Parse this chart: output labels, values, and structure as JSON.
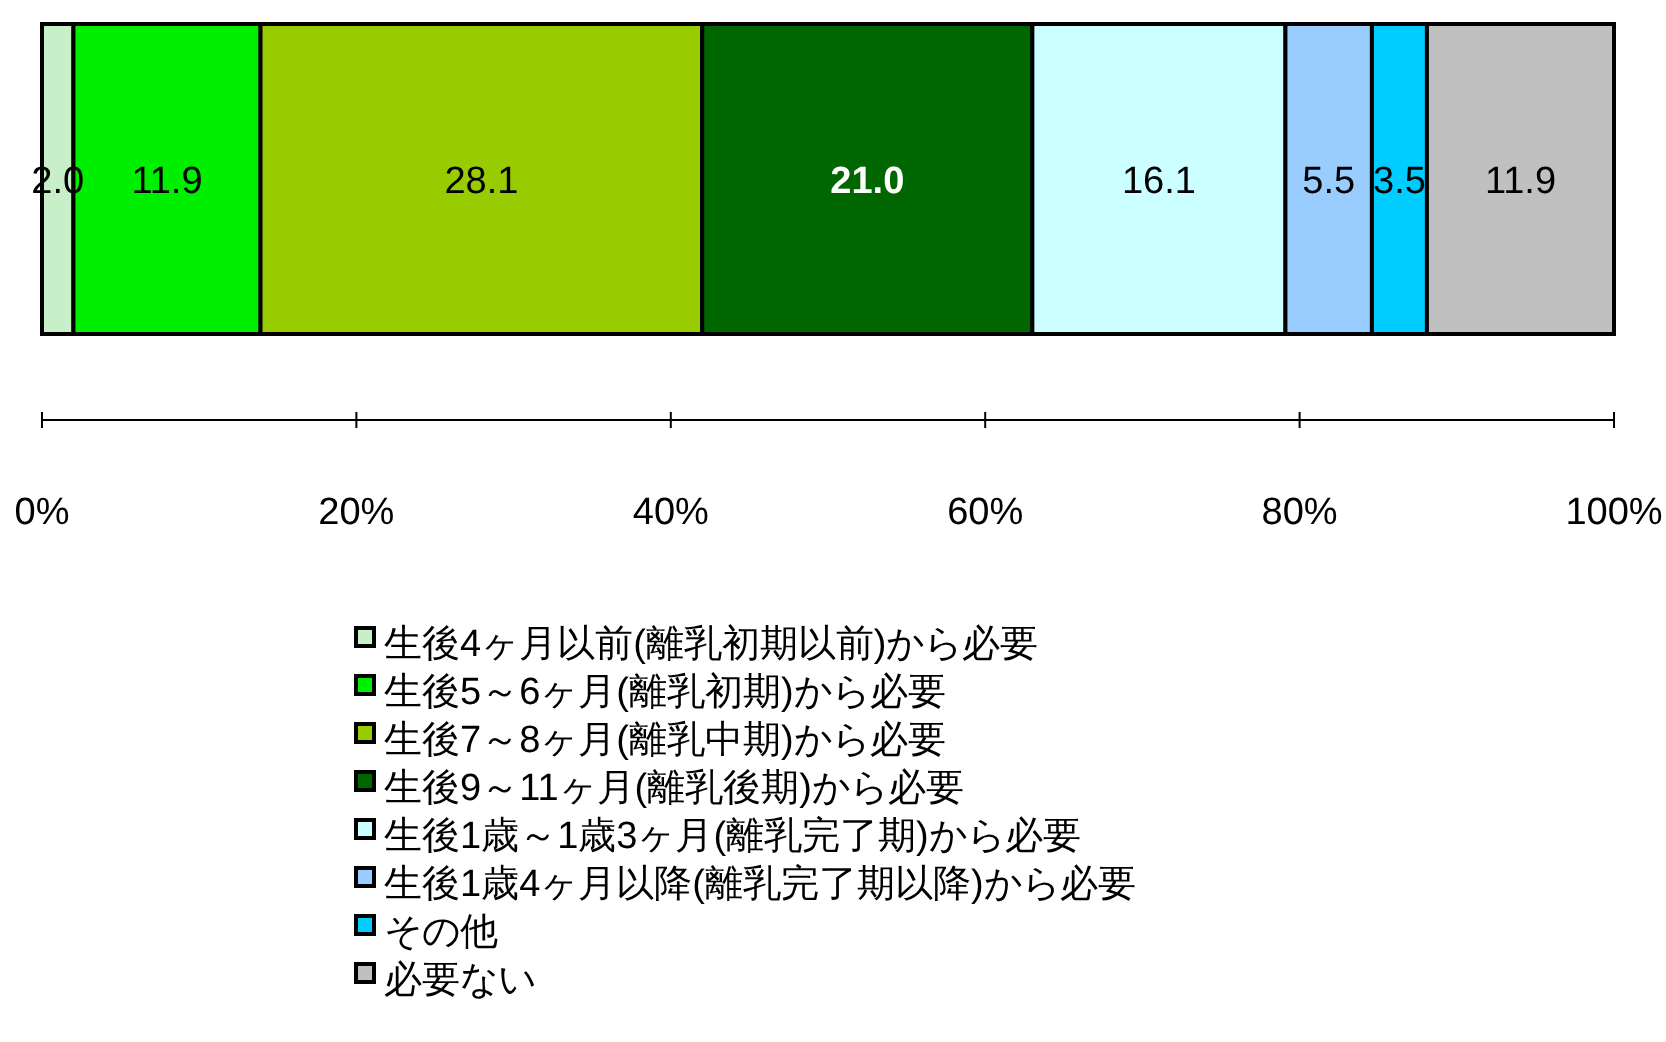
{
  "chart_data": {
    "type": "bar",
    "orientation": "horizontal",
    "stacked": true,
    "categories": [
      null
    ],
    "xlim": [
      0,
      100
    ],
    "xticks": [
      {
        "value": 0,
        "label": "0%"
      },
      {
        "value": 20,
        "label": "20%"
      },
      {
        "value": 40,
        "label": "40%"
      },
      {
        "value": 60,
        "label": "60%"
      },
      {
        "value": 80,
        "label": "80%"
      },
      {
        "value": 100,
        "label": "100%"
      }
    ],
    "legend": "bottom",
    "series": [
      {
        "name": "生後4ヶ月以前(離乳初期以前)から必要",
        "color": "#c8f0c8",
        "values": [
          2.0
        ],
        "value_labels": [
          "2.0"
        ]
      },
      {
        "name": "生後5～6ヶ月(離乳初期)から必要",
        "color": "#00ee00",
        "values": [
          11.9
        ],
        "value_labels": [
          "11.9"
        ]
      },
      {
        "name": "生後7～8ヶ月(離乳中期)から必要",
        "color": "#99cc00",
        "values": [
          28.1
        ],
        "value_labels": [
          "28.1"
        ]
      },
      {
        "name": "生後9～11ヶ月(離乳後期)から必要",
        "color": "#006600",
        "values": [
          21.0
        ],
        "value_labels": [
          "21.0"
        ]
      },
      {
        "name": "生後1歳～1歳3ヶ月(離乳完了期)から必要",
        "color": "#ccffff",
        "values": [
          16.1
        ],
        "value_labels": [
          "16.1"
        ]
      },
      {
        "name": "生後1歳4ヶ月以降(離乳完了期以降)から必要",
        "color": "#99ccff",
        "values": [
          5.5
        ],
        "value_labels": [
          "5.5"
        ]
      },
      {
        "name": "その他",
        "color": "#00ccff",
        "values": [
          3.5
        ],
        "value_labels": [
          "3.5"
        ]
      },
      {
        "name": "必要ない",
        "color": "#c0c0c0",
        "values": [
          11.9
        ],
        "value_labels": [
          "11.9"
        ]
      }
    ]
  }
}
